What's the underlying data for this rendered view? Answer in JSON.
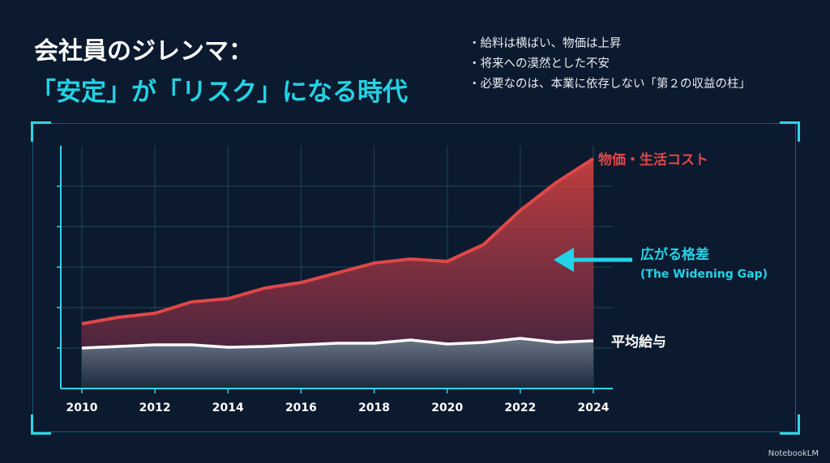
{
  "title_line1": "会社員のジレンマ：",
  "title_line2": "「安定」が「リスク」になる時代",
  "bullets": [
    "給料は横ばい、物価は上昇",
    "将来への漠然とした不安",
    "必要なのは、本業に依存しない「第２の収益の柱」"
  ],
  "gap_label": "広がる格差",
  "gap_label_en": "(The Widening Gap)",
  "watermark": "NotebookLM",
  "colors": {
    "accent": "#22d3e6",
    "cost": "#e04848",
    "salary": "#ffffff",
    "bg": "#0b1a2e"
  },
  "chart_data": {
    "type": "area",
    "title": "",
    "xlabel": "",
    "ylabel": "",
    "x": [
      2010,
      2011,
      2012,
      2013,
      2014,
      2015,
      2016,
      2017,
      2018,
      2019,
      2020,
      2021,
      2022,
      2023,
      2024
    ],
    "xticks": [
      "2010",
      "2012",
      "2014",
      "2016",
      "2018",
      "2020",
      "2022",
      "2024"
    ],
    "ylim": [
      0,
      6
    ],
    "grid": true,
    "series": [
      {
        "name": "物価・生活コスト",
        "color": "#e04848",
        "values": [
          1.6,
          1.76,
          1.86,
          2.14,
          2.22,
          2.48,
          2.62,
          2.86,
          3.1,
          3.2,
          3.14,
          3.56,
          4.4,
          5.1,
          5.68
        ]
      },
      {
        "name": "平均給与",
        "color": "#ffffff",
        "values": [
          1.0,
          1.04,
          1.08,
          1.08,
          1.02,
          1.04,
          1.08,
          1.12,
          1.12,
          1.2,
          1.1,
          1.14,
          1.24,
          1.14,
          1.18
        ]
      }
    ]
  }
}
